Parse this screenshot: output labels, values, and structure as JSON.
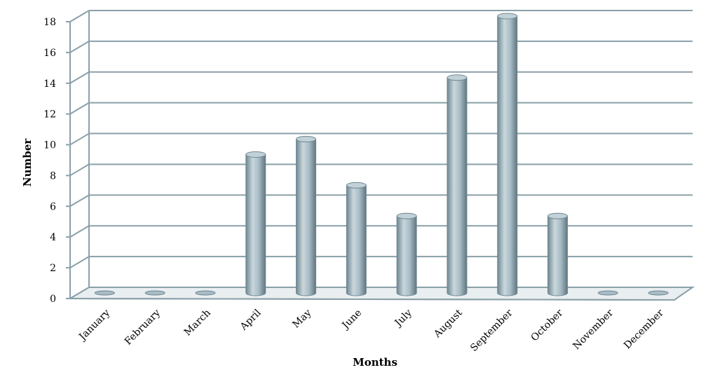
{
  "chart_data": {
    "type": "bar",
    "title": "",
    "xlabel": "Months",
    "ylabel": "Number",
    "categories": [
      "January",
      "February",
      "March",
      "April",
      "May",
      "June",
      "July",
      "August",
      "September",
      "October",
      "November",
      "December"
    ],
    "values": [
      0,
      0,
      0,
      9,
      10,
      7,
      5,
      14,
      18,
      5,
      0,
      0
    ],
    "ylim": [
      0,
      18
    ],
    "yticks": [
      "0",
      "2",
      "4",
      "6",
      "8",
      "10",
      "12",
      "14",
      "16",
      "18"
    ],
    "grid": true,
    "bar_style": "3d-cylinder",
    "colors": {
      "bar": "#a9bcc6",
      "grid": "#8aa0a8",
      "axis": "#8aa0a8"
    }
  }
}
